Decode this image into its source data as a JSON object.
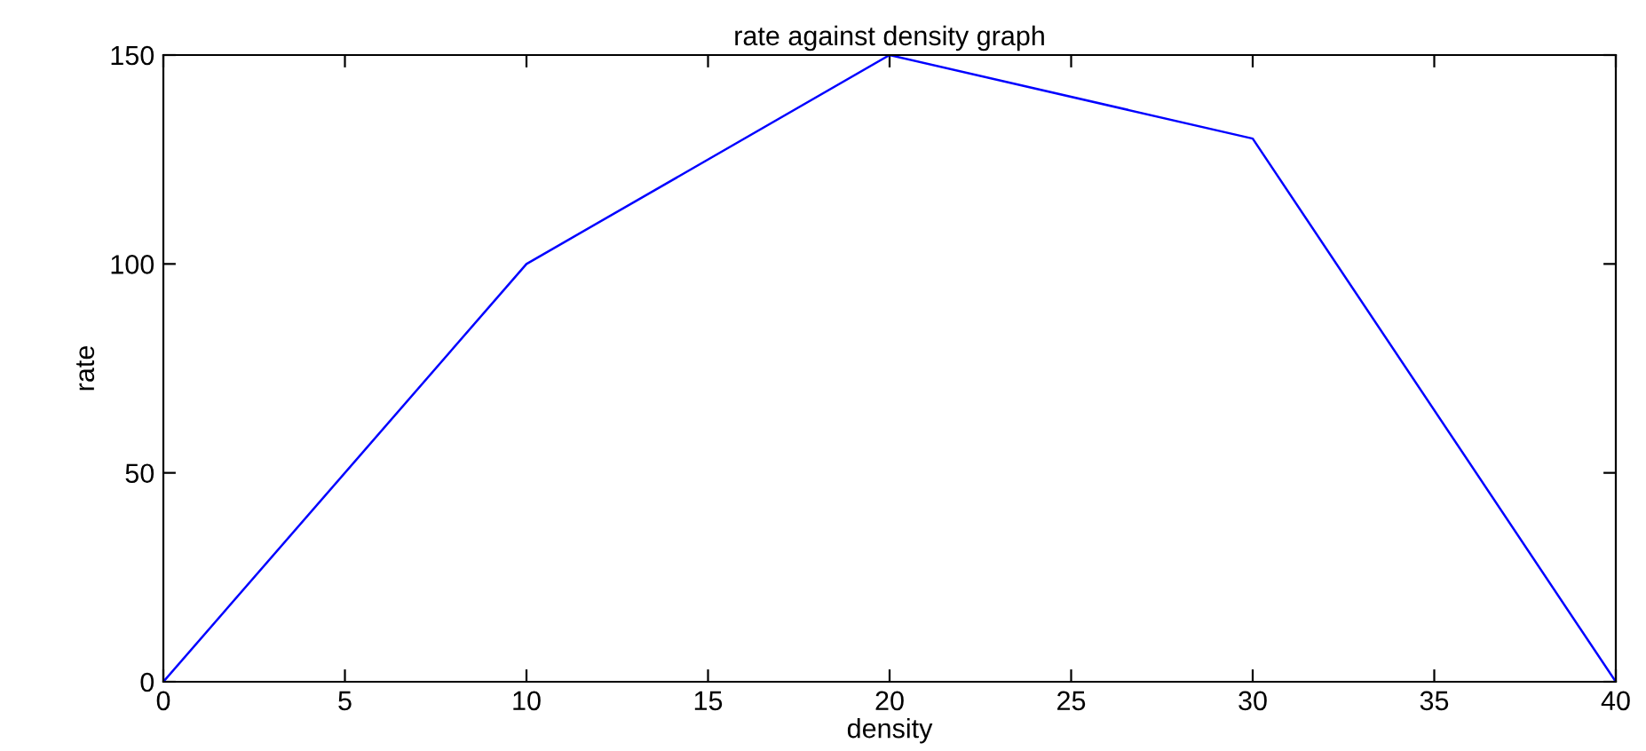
{
  "chart_data": {
    "type": "line",
    "title": "rate against density graph",
    "xlabel": "density",
    "ylabel": "rate",
    "x": [
      0,
      10,
      20,
      30,
      40
    ],
    "series": [
      {
        "color": "#0000ff",
        "values": [
          0,
          100,
          150,
          130,
          0
        ]
      }
    ],
    "xlim": [
      0,
      40
    ],
    "ylim": [
      0,
      150
    ],
    "xticks": [
      0,
      5,
      10,
      15,
      20,
      25,
      30,
      35,
      40
    ],
    "yticks": [
      0,
      50,
      100,
      150
    ],
    "grid": false,
    "legend": false,
    "marker": "none",
    "line_style": "solid"
  }
}
